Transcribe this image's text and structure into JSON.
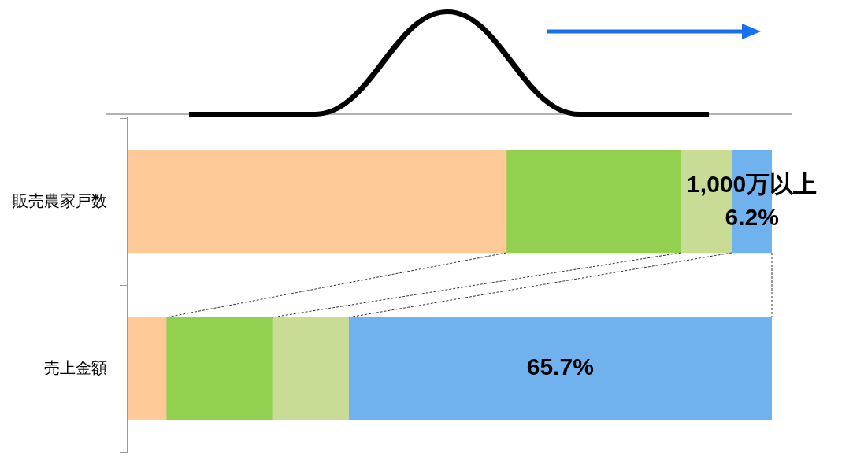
{
  "chart_data": {
    "type": "bar",
    "orientation": "horizontal",
    "stacked": true,
    "categories": [
      "販売農家戸数",
      "売上金額"
    ],
    "series": [
      {
        "color": "#fdca98",
        "values": [
          58.8,
          6.0
        ]
      },
      {
        "color": "#92d050",
        "values": [
          27.1,
          16.4
        ]
      },
      {
        "color": "#c9dc96",
        "values": [
          7.9,
          11.9
        ]
      },
      {
        "color": "#6fb2ee",
        "values": [
          6.2,
          65.7
        ],
        "value_labels": [
          "6.2%",
          "65.7%"
        ]
      }
    ],
    "xlim": [
      0,
      100
    ],
    "tick_labels": "y",
    "grid": false,
    "legend": false,
    "annotations": [
      "1,000万以上"
    ]
  }
}
